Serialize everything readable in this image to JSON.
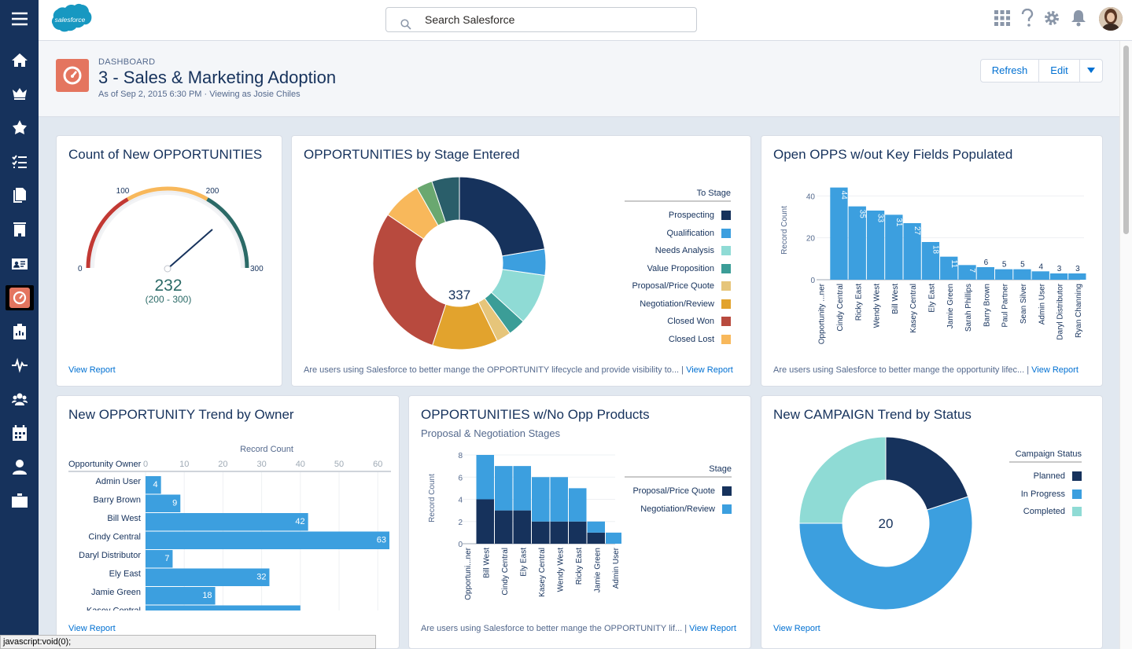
{
  "topbar": {
    "search_placeholder": "Search Salesforce",
    "logo_text": "salesforce"
  },
  "header": {
    "label": "DASHBOARD",
    "title": "3 - Sales & Marketing Adoption",
    "subtitle": "As of Sep 2, 2015 6:30 PM · Viewing as Josie Chiles",
    "refresh": "Refresh",
    "edit": "Edit"
  },
  "nav": [
    "menu-icon",
    "home-icon",
    "opportunities-icon",
    "leads-icon",
    "tasks-icon",
    "files-icon",
    "accounts-icon",
    "contacts-icon",
    "dashboards-icon",
    "reports-icon",
    "feed-icon",
    "groups-icon",
    "calendar-icon",
    "people-icon",
    "cases-icon"
  ],
  "colors": {
    "navy": "#16325c",
    "blue": "#3c9fdf",
    "teal": "#2a5e6a",
    "gauge_red": "#c23934",
    "gauge_yellow": "#f8b85b",
    "gauge_green": "#2b6a67",
    "accent": "#e4755f"
  },
  "footer": {
    "view_report": "View Report",
    "status": "javascript:void(0);"
  },
  "cards": {
    "gauge": {
      "title": "Count of New OPPORTUNITIES",
      "value": "232",
      "range": "(200 - 300)",
      "ticks": [
        "0",
        "100",
        "200",
        "300"
      ]
    },
    "stage": {
      "title": "OPPORTUNITIES by Stage Entered",
      "total": "337",
      "legend_title": "To Stage",
      "desc": "Are users using Salesforce to better mange the OPPORTUNITY lifecycle and provide visibility to...",
      "sep": "|"
    },
    "openopps": {
      "title": "Open OPPS w/out Key Fields Populated",
      "ylabel": "Record Count",
      "desc": "Are users using Salesforce to better mange the opportunity lifec...",
      "sep": "|"
    },
    "trend": {
      "title": "New OPPORTUNITY Trend by Owner",
      "xlabel": "Record Count",
      "ylabel": "Opportunity Owner"
    },
    "noprod": {
      "title": "OPPORTUNITIES w/No Opp Products",
      "subtitle": "Proposal & Negotiation Stages",
      "ylabel": "Record Count",
      "legend_title": "Stage",
      "desc": "Are users using Salesforce to better mange the OPPORTUNITY lif...",
      "sep": "|"
    },
    "campaign": {
      "title": "New CAMPAIGN Trend by Status",
      "total": "20",
      "legend_title": "Campaign Status"
    }
  },
  "chart_data": [
    {
      "type": "pie",
      "id": "stage",
      "categories": [
        "Prospecting",
        "Qualification",
        "Needs Analysis",
        "Value Proposition",
        "Proposal/Price Quote",
        "Negotiation/Review",
        "Closed Won",
        "Closed Lost"
      ],
      "values": [
        82,
        18,
        35,
        12,
        10,
        45,
        108,
        27
      ],
      "colors": [
        "#16325c",
        "#3c9fdf",
        "#8fdbd5",
        "#3b9d97",
        "#e6c57a",
        "#e2a32d",
        "#b84a3e",
        "#f8b85b"
      ],
      "extra_slices": [
        {
          "value": 11,
          "color": "#6aa870"
        },
        {
          "value": 19,
          "color": "#2a5e6a"
        }
      ],
      "total": 337
    },
    {
      "type": "bar",
      "id": "openopps",
      "categories": [
        "Opportunity ...ner",
        "Cindy Central",
        "Ricky East",
        "Wendy West",
        "Bill West",
        "Kasey Central",
        "Ely East",
        "Jamie Green",
        "Sarah Phillips",
        "Barry Brown",
        "Paul Partner",
        "Sean Silver",
        "Admin User",
        "Daryl Distributor",
        "Ryan Channing"
      ],
      "values": [
        null,
        44,
        35,
        33,
        31,
        27,
        18,
        11,
        7,
        6,
        5,
        5,
        4,
        3,
        3
      ],
      "ylim": [
        0,
        45
      ],
      "yticks": [
        0,
        20,
        40
      ],
      "ylabel": "Record Count"
    },
    {
      "type": "bar",
      "id": "trend",
      "orientation": "horizontal",
      "categories": [
        "Admin User",
        "Barry Brown",
        "Bill West",
        "Cindy Central",
        "Daryl Distributor",
        "Ely East",
        "Jamie Green",
        "Kasey Central"
      ],
      "values": [
        4,
        9,
        42,
        63,
        7,
        32,
        18,
        40
      ],
      "xlim": [
        0,
        63
      ],
      "xticks": [
        0,
        10,
        20,
        30,
        40,
        50,
        60
      ],
      "xlabel": "Record Count",
      "ylabel": "Opportunity Owner"
    },
    {
      "type": "bar",
      "id": "noprod",
      "stacked": true,
      "categories": [
        "Opportuni...ner",
        "Bill West",
        "Cindy Central",
        "Ely East",
        "Kasey Central",
        "Wendy West",
        "Ricky East",
        "Jamie Green",
        "Admin User"
      ],
      "series": [
        {
          "name": "Proposal/Price Quote",
          "color": "#16325c",
          "values": [
            null,
            4,
            3,
            3,
            2,
            2,
            2,
            1,
            0
          ]
        },
        {
          "name": "Negotiation/Review",
          "color": "#3c9fdf",
          "values": [
            null,
            4,
            4,
            4,
            4,
            4,
            3,
            1,
            1
          ]
        }
      ],
      "ylim": [
        0,
        8
      ],
      "yticks": [
        0,
        2,
        4,
        6,
        8
      ],
      "ylabel": "Record Count"
    },
    {
      "type": "pie",
      "id": "campaign",
      "categories": [
        "Planned",
        "In Progress",
        "Completed"
      ],
      "values": [
        4,
        11,
        5
      ],
      "colors": [
        "#16325c",
        "#3c9fdf",
        "#8fdbd5"
      ],
      "total": 20
    }
  ]
}
